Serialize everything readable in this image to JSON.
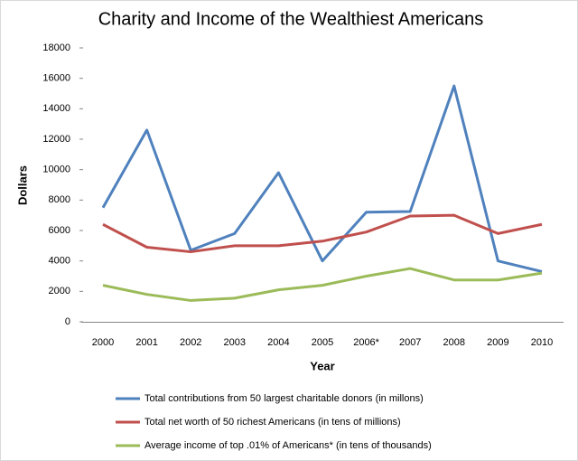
{
  "chart_data": {
    "type": "line",
    "title": "Charity and Income of the Wealthiest Americans",
    "x_label": "Year",
    "y_label": "Dollars",
    "categories": [
      "2000",
      "2001",
      "2002",
      "2003",
      "2004",
      "2005",
      "2006*",
      "2007",
      "2008",
      "2009",
      "2010"
    ],
    "series": [
      {
        "name": "Total contributions from 50 largest charitable donors (in millons)",
        "color": "#4f81bd",
        "values": [
          7500,
          12600,
          4700,
          5800,
          9800,
          4000,
          7200,
          7250,
          15500,
          4000,
          3300
        ]
      },
      {
        "name": "Total net worth of 50 richest Americans (in tens of millions)",
        "color": "#c0504d",
        "values": [
          6400,
          4900,
          4600,
          5000,
          5000,
          5300,
          5900,
          6950,
          7000,
          5800,
          6400
        ]
      },
      {
        "name": "Average income of top .01% of Americans* (in tens of thousands)",
        "color": "#9bbb59",
        "values": [
          2400,
          1800,
          1400,
          1550,
          2100,
          2400,
          3000,
          3500,
          2750,
          2750,
          3200
        ]
      }
    ],
    "ylim": [
      0,
      18000
    ],
    "yticks": [
      0,
      2000,
      4000,
      6000,
      8000,
      10000,
      12000,
      14000,
      16000,
      18000
    ],
    "grid": false,
    "legend": "bottom"
  }
}
